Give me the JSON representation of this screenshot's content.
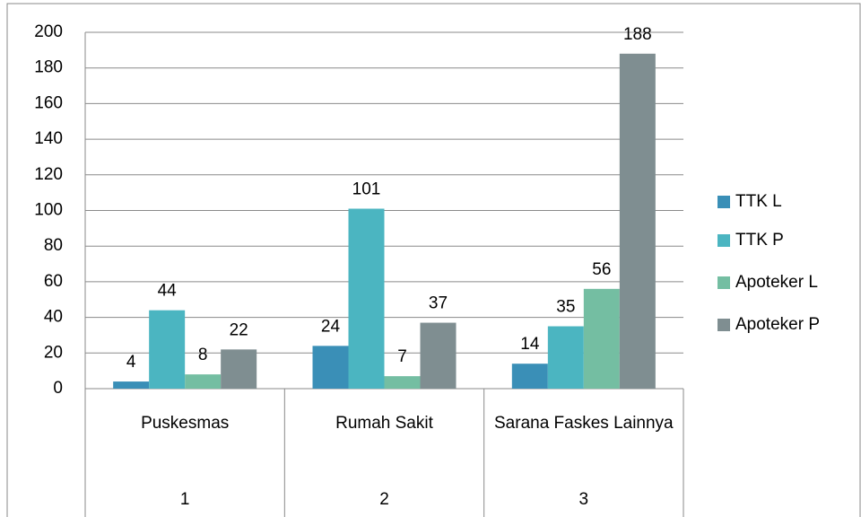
{
  "chart_data": {
    "type": "bar",
    "categories": [
      "Puskesmas",
      "Rumah Sakit",
      "Sarana Faskes Lainnya"
    ],
    "category_groups": [
      "1",
      "2",
      "3"
    ],
    "series": [
      {
        "name": "TTK L",
        "color": "#3a8fb7",
        "values": [
          4,
          24,
          14
        ]
      },
      {
        "name": "TTK P",
        "color": "#4bb5c1",
        "values": [
          44,
          101,
          35
        ]
      },
      {
        "name": "Apoteker L",
        "color": "#74bea2",
        "values": [
          8,
          7,
          56
        ]
      },
      {
        "name": "Apoteker P",
        "color": "#7f8e91",
        "values": [
          22,
          37,
          188
        ]
      }
    ],
    "ylim": [
      0,
      200
    ],
    "yticks": [
      0,
      20,
      40,
      60,
      80,
      100,
      120,
      140,
      160,
      180,
      200
    ],
    "grid": true,
    "legend": "right"
  }
}
